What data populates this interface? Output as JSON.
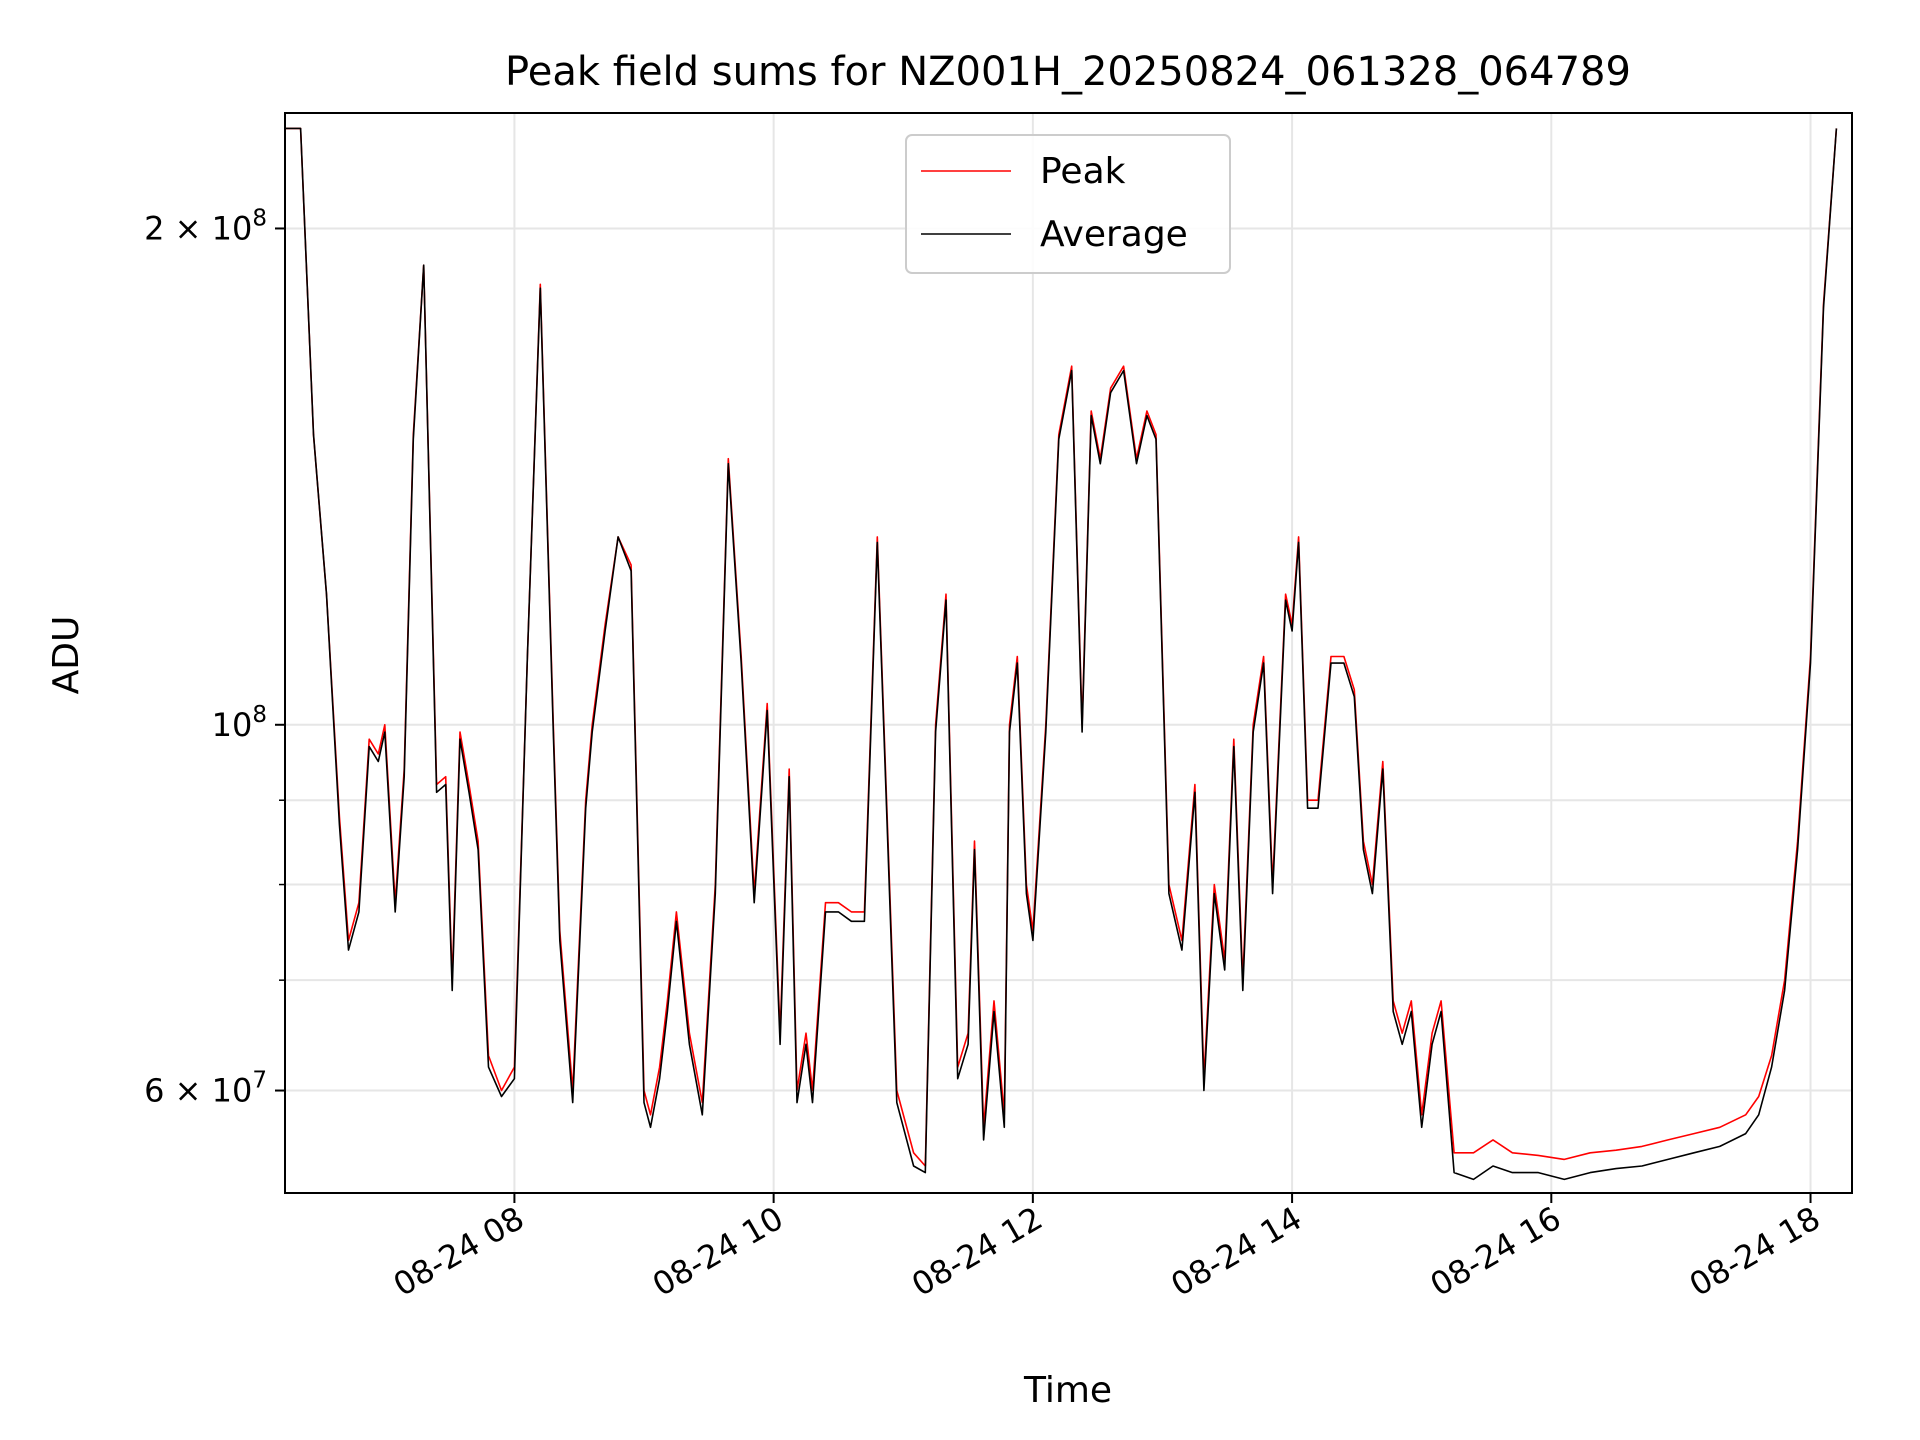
{
  "chart_data": {
    "type": "line",
    "title": "Peak field sums for NZ001H_20250824_061328_064789",
    "xlabel": "Time",
    "ylabel": "ADU",
    "yscale": "log",
    "grid": true,
    "legend_position": "top-center",
    "x_ticks": [
      {
        "hour": 8,
        "label": "08-24 08"
      },
      {
        "hour": 10,
        "label": "08-24 10"
      },
      {
        "hour": 12,
        "label": "08-24 12"
      },
      {
        "hour": 14,
        "label": "08-24 14"
      },
      {
        "hour": 16,
        "label": "08-24 16"
      },
      {
        "hour": 18,
        "label": "08-24 18"
      }
    ],
    "y_ticks_labeled": [
      {
        "value": 60000000,
        "label": "6 × 10⁷",
        "mantissa": "6",
        "exponent": "7"
      },
      {
        "value": 100000000,
        "label": "10⁸",
        "mantissa": "",
        "exponent": "8"
      },
      {
        "value": 200000000,
        "label": "2 × 10⁸",
        "mantissa": "2",
        "exponent": "8"
      }
    ],
    "y_minor_grid": [
      70000000,
      80000000,
      90000000
    ],
    "series": [
      {
        "name": "Peak",
        "color": "#ff0000",
        "hour": [
          6.23,
          6.35,
          6.45,
          6.55,
          6.65,
          6.72,
          6.8,
          6.88,
          6.95,
          7.0,
          7.08,
          7.15,
          7.22,
          7.3,
          7.4,
          7.47,
          7.52,
          7.58,
          7.65,
          7.72,
          7.8,
          7.9,
          8.0,
          8.1,
          8.2,
          8.3,
          8.35,
          8.45,
          8.55,
          8.6,
          8.7,
          8.8,
          8.9,
          9.0,
          9.05,
          9.12,
          9.18,
          9.25,
          9.35,
          9.45,
          9.55,
          9.65,
          9.75,
          9.85,
          9.95,
          10.05,
          10.12,
          10.18,
          10.25,
          10.3,
          10.4,
          10.5,
          10.6,
          10.7,
          10.8,
          10.95,
          11.08,
          11.17,
          11.25,
          11.33,
          11.42,
          11.5,
          11.55,
          11.62,
          11.7,
          11.78,
          11.82,
          11.88,
          11.95,
          12.0,
          12.1,
          12.2,
          12.3,
          12.38,
          12.45,
          12.52,
          12.6,
          12.7,
          12.8,
          12.88,
          12.95,
          13.05,
          13.15,
          13.25,
          13.32,
          13.4,
          13.48,
          13.55,
          13.62,
          13.7,
          13.78,
          13.85,
          13.95,
          14.0,
          14.05,
          14.12,
          14.2,
          14.3,
          14.4,
          14.48,
          14.55,
          14.62,
          14.7,
          14.78,
          14.85,
          14.92,
          15.0,
          15.08,
          15.15,
          15.25,
          15.4,
          15.55,
          15.7,
          15.9,
          16.1,
          16.3,
          16.5,
          16.7,
          16.9,
          17.1,
          17.3,
          17.5,
          17.6,
          17.7,
          17.8,
          17.9,
          18.0,
          18.1,
          18.2
        ],
        "values": [
          230000000.0,
          230000000.0,
          150000000.0,
          120000000.0,
          88000000.0,
          74000000.0,
          78000000.0,
          98000000.0,
          96000000.0,
          100000000.0,
          78000000.0,
          94000000.0,
          150000000.0,
          190000000.0,
          92000000.0,
          93000000.0,
          70000000.0,
          99000000.0,
          92000000.0,
          85000000.0,
          63000000.0,
          60000000.0,
          62000000.0,
          110000000.0,
          185000000.0,
          100000000.0,
          75000000.0,
          60000000.0,
          90000000.0,
          100000000.0,
          115000000.0,
          130000000.0,
          125000000.0,
          60000000.0,
          58000000.0,
          62000000.0,
          68000000.0,
          77000000.0,
          65000000.0,
          59000000.0,
          80000000.0,
          145000000.0,
          110000000.0,
          79000000.0,
          103000000.0,
          65000000.0,
          94000000.0,
          60000000.0,
          65000000.0,
          60000000.0,
          78000000.0,
          78000000.0,
          77000000.0,
          77000000.0,
          130000000.0,
          60000000.0,
          55000000.0,
          54000000.0,
          100000000.0,
          120000000.0,
          62000000.0,
          65000000.0,
          85000000.0,
          57000000.0,
          68000000.0,
          58000000.0,
          100000000.0,
          110000000.0,
          80000000.0,
          75000000.0,
          100000000.0,
          150000000.0,
          165000000.0,
          100000000.0,
          155000000.0,
          145000000.0,
          160000000.0,
          165000000.0,
          145000000.0,
          155000000.0,
          150000000.0,
          80000000.0,
          74000000.0,
          92000000.0,
          61000000.0,
          80000000.0,
          72000000.0,
          98000000.0,
          70000000.0,
          100000000.0,
          110000000.0,
          80000000.0,
          120000000.0,
          115000000.0,
          130000000.0,
          90000000.0,
          90000000.0,
          110000000.0,
          110000000.0,
          105000000.0,
          85000000.0,
          80000000.0,
          95000000.0,
          68000000.0,
          65000000.0,
          68000000.0,
          58000000.0,
          65000000.0,
          68000000.0,
          55000000.0,
          55000000.0,
          56000000.0,
          55000000.0,
          54800000.0,
          54500000.0,
          55000000.0,
          55200000.0,
          55500000.0,
          56000000.0,
          56500000.0,
          57000000.0,
          58000000.0,
          59500000.0,
          63000000.0,
          70000000.0,
          85000000.0,
          110000000.0,
          180000000.0,
          230000000.0
        ]
      },
      {
        "name": "Average",
        "color": "#000000",
        "hour": [
          6.23,
          6.35,
          6.45,
          6.55,
          6.65,
          6.72,
          6.8,
          6.88,
          6.95,
          7.0,
          7.08,
          7.15,
          7.22,
          7.3,
          7.4,
          7.47,
          7.52,
          7.58,
          7.65,
          7.72,
          7.8,
          7.9,
          8.0,
          8.1,
          8.2,
          8.3,
          8.35,
          8.45,
          8.55,
          8.6,
          8.7,
          8.8,
          8.9,
          9.0,
          9.05,
          9.12,
          9.18,
          9.25,
          9.35,
          9.45,
          9.55,
          9.65,
          9.75,
          9.85,
          9.95,
          10.05,
          10.12,
          10.18,
          10.25,
          10.3,
          10.4,
          10.5,
          10.6,
          10.7,
          10.8,
          10.95,
          11.08,
          11.17,
          11.25,
          11.33,
          11.42,
          11.5,
          11.55,
          11.62,
          11.7,
          11.78,
          11.82,
          11.88,
          11.95,
          12.0,
          12.1,
          12.2,
          12.3,
          12.38,
          12.45,
          12.52,
          12.6,
          12.7,
          12.8,
          12.88,
          12.95,
          13.05,
          13.15,
          13.25,
          13.32,
          13.4,
          13.48,
          13.55,
          13.62,
          13.7,
          13.78,
          13.85,
          13.95,
          14.0,
          14.05,
          14.12,
          14.2,
          14.3,
          14.4,
          14.48,
          14.55,
          14.62,
          14.7,
          14.78,
          14.85,
          14.92,
          15.0,
          15.08,
          15.15,
          15.25,
          15.4,
          15.55,
          15.7,
          15.9,
          16.1,
          16.3,
          16.5,
          16.7,
          16.9,
          17.1,
          17.3,
          17.5,
          17.6,
          17.7,
          17.8,
          17.9,
          18.0,
          18.1,
          18.2
        ],
        "values": [
          230000000.0,
          230000000.0,
          150000000.0,
          120000000.0,
          87000000.0,
          73000000.0,
          77000000.0,
          97000000.0,
          95000000.0,
          99000000.0,
          77000000.0,
          93000000.0,
          149000000.0,
          190000000.0,
          91000000.0,
          92000000.0,
          69000000.0,
          98000000.0,
          91000000.0,
          84000000.0,
          62000000.0,
          59500000.0,
          61000000.0,
          110000000.0,
          184000000.0,
          99000000.0,
          74000000.0,
          59000000.0,
          89000000.0,
          99000000.0,
          114000000.0,
          130000000.0,
          124000000.0,
          59000000.0,
          57000000.0,
          61000000.0,
          67000000.0,
          76000000.0,
          64000000.0,
          58000000.0,
          79000000.0,
          144000000.0,
          109000000.0,
          78000000.0,
          102000000.0,
          64000000.0,
          93000000.0,
          59000000.0,
          64000000.0,
          59000000.0,
          77000000.0,
          77000000.0,
          76000000.0,
          76000000.0,
          129000000.0,
          59000000.0,
          54000000.0,
          53500000.0,
          99000000.0,
          119000000.0,
          61000000.0,
          64000000.0,
          84000000.0,
          56000000.0,
          67000000.0,
          57000000.0,
          99000000.0,
          109000000.0,
          79000000.0,
          74000000.0,
          99000000.0,
          149000000.0,
          164000000.0,
          99000000.0,
          154000000.0,
          144000000.0,
          159000000.0,
          164000000.0,
          144000000.0,
          154000000.0,
          149000000.0,
          79000000.0,
          73000000.0,
          91000000.0,
          60000000.0,
          79000000.0,
          71000000.0,
          97000000.0,
          69000000.0,
          99000000.0,
          109000000.0,
          79000000.0,
          119000000.0,
          114000000.0,
          129000000.0,
          89000000.0,
          89000000.0,
          109000000.0,
          109000000.0,
          104000000.0,
          84000000.0,
          79000000.0,
          94000000.0,
          67000000.0,
          64000000.0,
          67000000.0,
          57000000.0,
          64000000.0,
          67000000.0,
          53500000.0,
          53000000.0,
          54000000.0,
          53500000.0,
          53500000.0,
          53000000.0,
          53500000.0,
          53800000.0,
          54000000.0,
          54500000.0,
          55000000.0,
          55500000.0,
          56500000.0,
          58000000.0,
          62000000.0,
          69000000.0,
          84000000.0,
          109000000.0,
          179000000.0,
          230000000.0
        ]
      }
    ]
  }
}
